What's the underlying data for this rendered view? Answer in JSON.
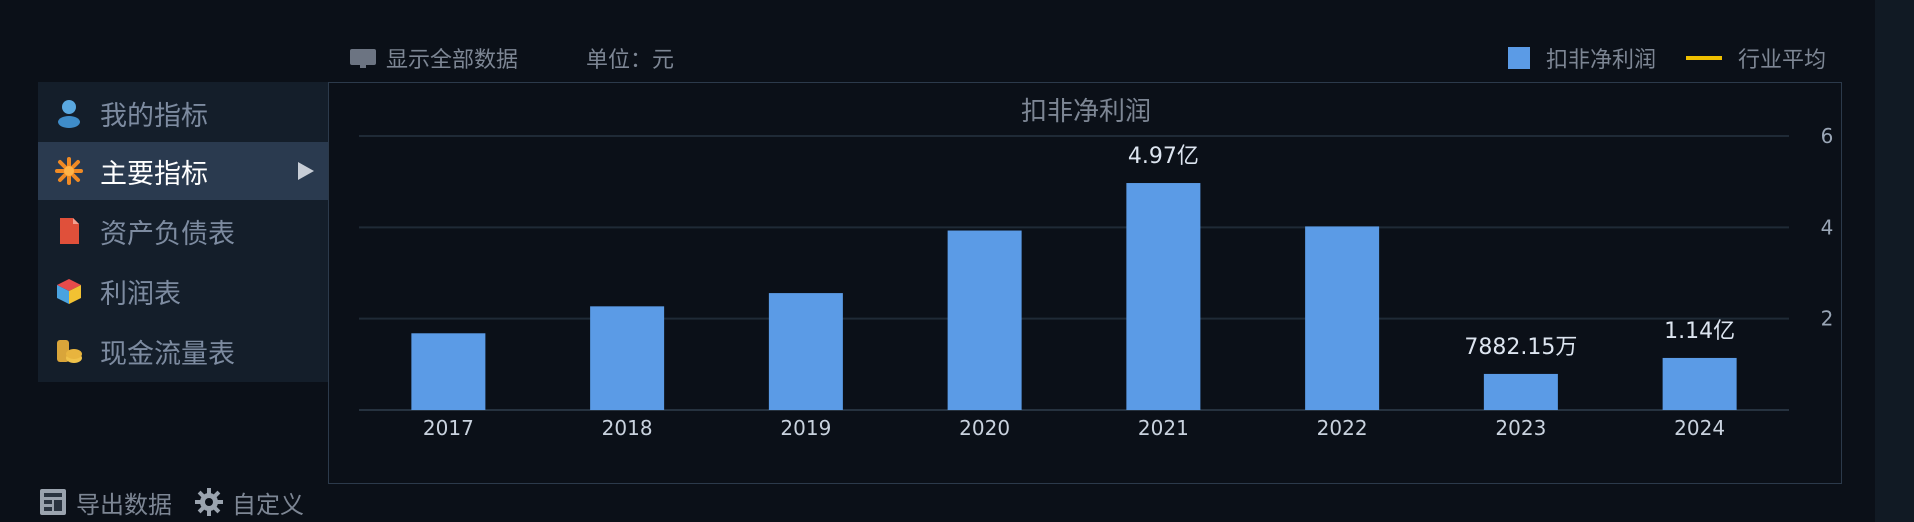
{
  "topbar": {
    "show_all_label": "显示全部数据",
    "unit_label": "单位：元",
    "legend_bar_label": "扣非净利润",
    "legend_line_label": "行业平均"
  },
  "sidebar": {
    "items": [
      {
        "label": "我的指标",
        "icon": "user-icon",
        "active": false
      },
      {
        "label": "主要指标",
        "icon": "star-burst-icon",
        "active": true
      },
      {
        "label": "资产负债表",
        "icon": "document-icon",
        "active": false
      },
      {
        "label": "利润表",
        "icon": "cube-icon",
        "active": false
      },
      {
        "label": "现金流量表",
        "icon": "coins-icon",
        "active": false
      }
    ]
  },
  "bottom": {
    "export_label": "导出数据",
    "custom_label": "自定义"
  },
  "colors": {
    "bar": "#5b9be6",
    "industry_line": "#f0c000",
    "grid": "#1f2a36",
    "frame": "#2c3a4b"
  },
  "chart_data": {
    "type": "bar",
    "title": "扣非净利润",
    "categories": [
      "2017",
      "2018",
      "2019",
      "2020",
      "2021",
      "2022",
      "2023",
      "2024"
    ],
    "series": [
      {
        "name": "扣非净利润",
        "values": [
          1.68,
          2.27,
          2.56,
          3.93,
          4.97,
          4.02,
          0.79,
          1.14
        ]
      }
    ],
    "data_labels": [
      "",
      "",
      "",
      "",
      "4.97亿",
      "",
      "7882.15万",
      "1.14亿"
    ],
    "yticks": [
      2,
      4,
      6
    ],
    "ylim": [
      0,
      6
    ],
    "legend_position": "top-right",
    "grid": true
  }
}
